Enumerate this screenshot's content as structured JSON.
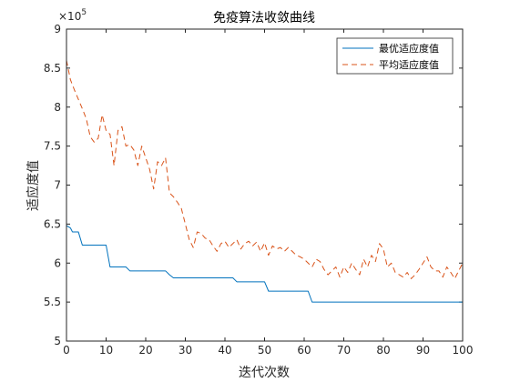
{
  "chart_data": {
    "type": "line",
    "title": "免疫算法收敛曲线",
    "xlabel": "迭代次数",
    "ylabel": "适应度值",
    "y_multiplier_base": "×10",
    "y_multiplier_exp": "5",
    "xlim": [
      0,
      100
    ],
    "ylim": [
      5,
      9
    ],
    "xticks": [
      0,
      10,
      20,
      30,
      40,
      50,
      60,
      70,
      80,
      90,
      100
    ],
    "yticks": [
      5,
      5.5,
      6,
      6.5,
      7,
      7.5,
      8,
      8.5,
      9
    ],
    "ytick_labels": [
      "5",
      "5.5",
      "6",
      "6.5",
      "7",
      "7.5",
      "8",
      "8.5",
      "9"
    ],
    "legend_position": "top-right",
    "series": [
      {
        "name": "最优适应度值",
        "color": "#0072BD",
        "style": "solid",
        "x": [
          0,
          1,
          1.5,
          3,
          4,
          5,
          10,
          11,
          15,
          16,
          25,
          26,
          27,
          42,
          43,
          50,
          51,
          61,
          62,
          100
        ],
        "y": [
          6.48,
          6.45,
          6.4,
          6.4,
          6.23,
          6.23,
          6.23,
          5.95,
          5.95,
          5.9,
          5.9,
          5.85,
          5.81,
          5.81,
          5.76,
          5.76,
          5.64,
          5.64,
          5.5,
          5.5
        ]
      },
      {
        "name": "平均适应度值",
        "color": "#D95319",
        "style": "dashed",
        "x": [
          0,
          1,
          2,
          3,
          4,
          5,
          6,
          7,
          8,
          9,
          10,
          11,
          12,
          13,
          14,
          15,
          16,
          17,
          18,
          19,
          20,
          21,
          22,
          23,
          24,
          25,
          26,
          27,
          28,
          29,
          30,
          31,
          32,
          33,
          34,
          35,
          36,
          37,
          38,
          39,
          40,
          41,
          42,
          43,
          44,
          45,
          46,
          47,
          48,
          49,
          50,
          51,
          52,
          53,
          54,
          55,
          56,
          57,
          58,
          59,
          60,
          61,
          62,
          63,
          64,
          65,
          66,
          67,
          68,
          69,
          70,
          71,
          72,
          73,
          74,
          75,
          76,
          77,
          78,
          79,
          80,
          81,
          82,
          83,
          84,
          85,
          86,
          87,
          88,
          89,
          90,
          91,
          92,
          93,
          94,
          95,
          96,
          97,
          98,
          99,
          100
        ],
        "y": [
          8.6,
          8.35,
          8.22,
          8.1,
          7.98,
          7.85,
          7.62,
          7.55,
          7.6,
          7.9,
          7.7,
          7.65,
          7.25,
          7.7,
          7.75,
          7.5,
          7.52,
          7.45,
          7.25,
          7.5,
          7.35,
          7.2,
          6.95,
          7.3,
          7.25,
          7.35,
          6.9,
          6.85,
          6.78,
          6.7,
          6.5,
          6.3,
          6.2,
          6.4,
          6.38,
          6.32,
          6.3,
          6.22,
          6.15,
          6.25,
          6.28,
          6.2,
          6.25,
          6.3,
          6.18,
          6.25,
          6.28,
          6.22,
          6.27,
          6.15,
          6.26,
          6.1,
          6.22,
          6.18,
          6.2,
          6.15,
          6.2,
          6.15,
          6.1,
          6.08,
          6.05,
          6.0,
          5.95,
          6.05,
          6.02,
          5.92,
          5.85,
          5.9,
          5.95,
          5.82,
          5.95,
          5.88,
          6.0,
          5.92,
          5.85,
          6.05,
          5.95,
          6.1,
          6.02,
          6.25,
          6.18,
          5.95,
          6.0,
          5.88,
          5.85,
          5.82,
          5.88,
          5.8,
          5.85,
          5.92,
          6.0,
          6.08,
          5.95,
          5.9,
          5.9,
          5.82,
          5.95,
          5.88,
          5.8,
          5.9,
          6.0
        ]
      }
    ]
  }
}
